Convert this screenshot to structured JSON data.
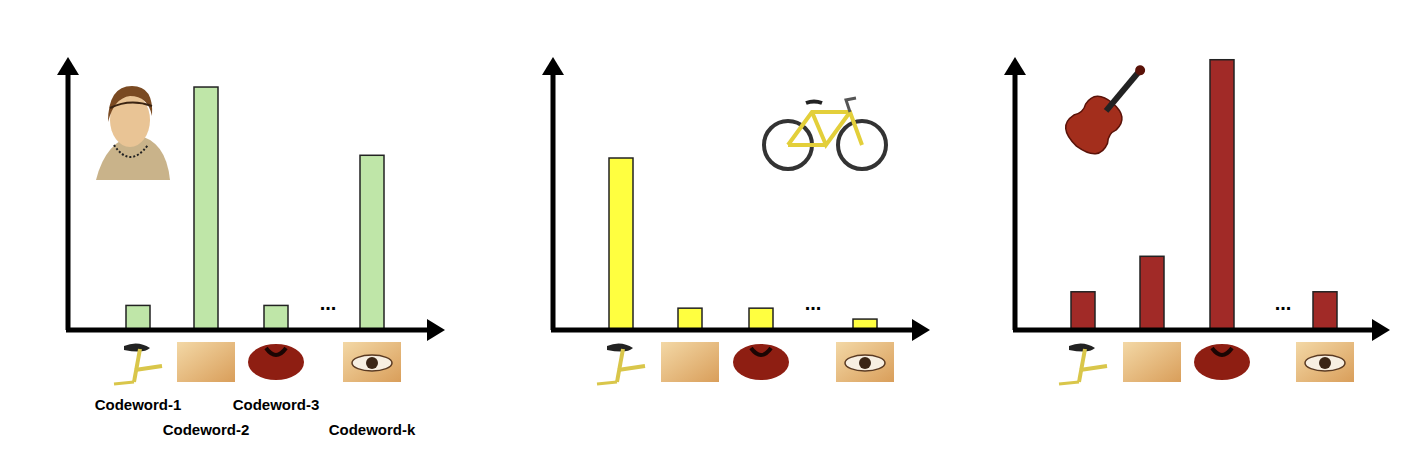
{
  "chart_data": [
    {
      "type": "bar",
      "categories": [
        "Codeword-1",
        "Codeword-2",
        "Codeword-3",
        "Codeword-k"
      ],
      "values": [
        9,
        89,
        9,
        64
      ],
      "color": "#bfe6a8",
      "ylim": [
        0,
        100
      ],
      "tick_labels": "x",
      "annotation": "..."
    },
    {
      "type": "bar",
      "categories": [
        null,
        null,
        null,
        null
      ],
      "values": [
        63,
        8,
        8,
        4
      ],
      "color": "#ffff40",
      "ylim": [
        0,
        100
      ],
      "tick_labels": false,
      "annotation": "..."
    },
    {
      "type": "bar",
      "categories": [
        null,
        null,
        null,
        null
      ],
      "values": [
        14,
        27,
        99,
        14
      ],
      "color": "#a12a27",
      "ylim": [
        0,
        100
      ],
      "tick_labels": false,
      "annotation": "..."
    }
  ]
}
